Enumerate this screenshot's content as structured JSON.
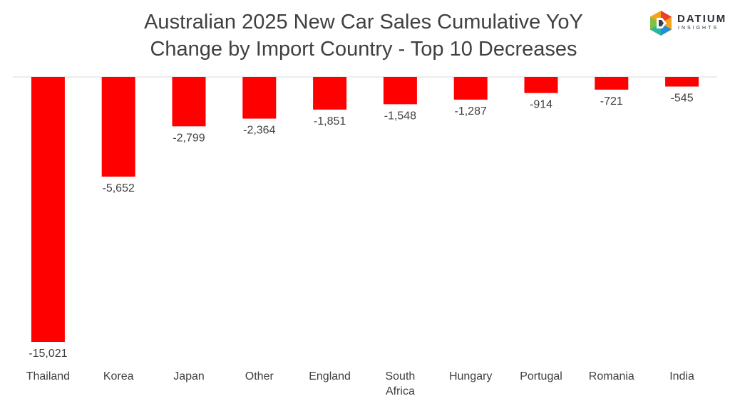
{
  "logo": {
    "name": "DATIUM",
    "tagline": "INSIGHTS"
  },
  "chart_data": {
    "type": "bar",
    "title": "Australian 2025 New Car Sales Cumulative YoY Change by Import Country - Top 10 Decreases",
    "title_lines": [
      "Australian 2025 New Car Sales Cumulative YoY",
      "Change by Import Country - Top 10 Decreases"
    ],
    "categories": [
      "Thailand",
      "Korea",
      "Japan",
      "Other",
      "England",
      "South Africa",
      "Hungary",
      "Portugal",
      "Romania",
      "India"
    ],
    "values": [
      -15021,
      -5652,
      -2799,
      -2364,
      -1851,
      -1548,
      -1287,
      -914,
      -721,
      -545
    ],
    "data_labels": [
      "-15,021",
      "-5,652",
      "-2,799",
      "-2,364",
      "-1,851",
      "-1,548",
      "-1,287",
      "-914",
      "-721",
      "-545"
    ],
    "ylim": [
      -15021,
      0
    ],
    "grid": false,
    "legend": "none",
    "bar_color": "#ff0000"
  }
}
